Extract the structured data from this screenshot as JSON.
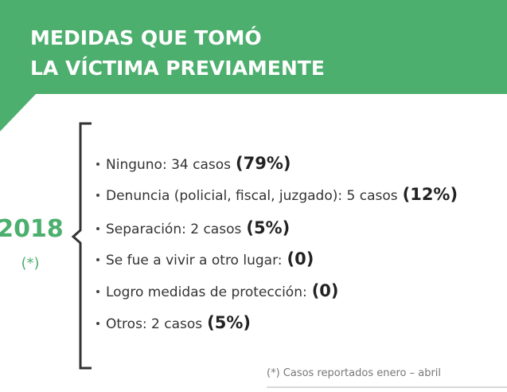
{
  "header": {
    "title_lines": [
      "MEDIDAS QUE TOMÓ",
      "LA VÍCTIMA PREVIAMENTE"
    ]
  },
  "year": "2018",
  "year_note": "(*)",
  "items": [
    {
      "text": "Ninguno: 34 casos",
      "highlight": "(79%)"
    },
    {
      "text": "Denuncia (policial, fiscal, juzgado): 5 casos",
      "highlight": "(12%)"
    },
    {
      "text": "Separación: 2 casos",
      "highlight": "(5%)"
    },
    {
      "text": "Se fue a vivir a otro lugar:",
      "highlight": "(0)"
    },
    {
      "text": "Logro medidas de protección:",
      "highlight": "(0)"
    },
    {
      "text": "Otros: 2 casos",
      "highlight": "(5%)"
    }
  ],
  "footnote": "(*) Casos reportados enero – abril"
}
